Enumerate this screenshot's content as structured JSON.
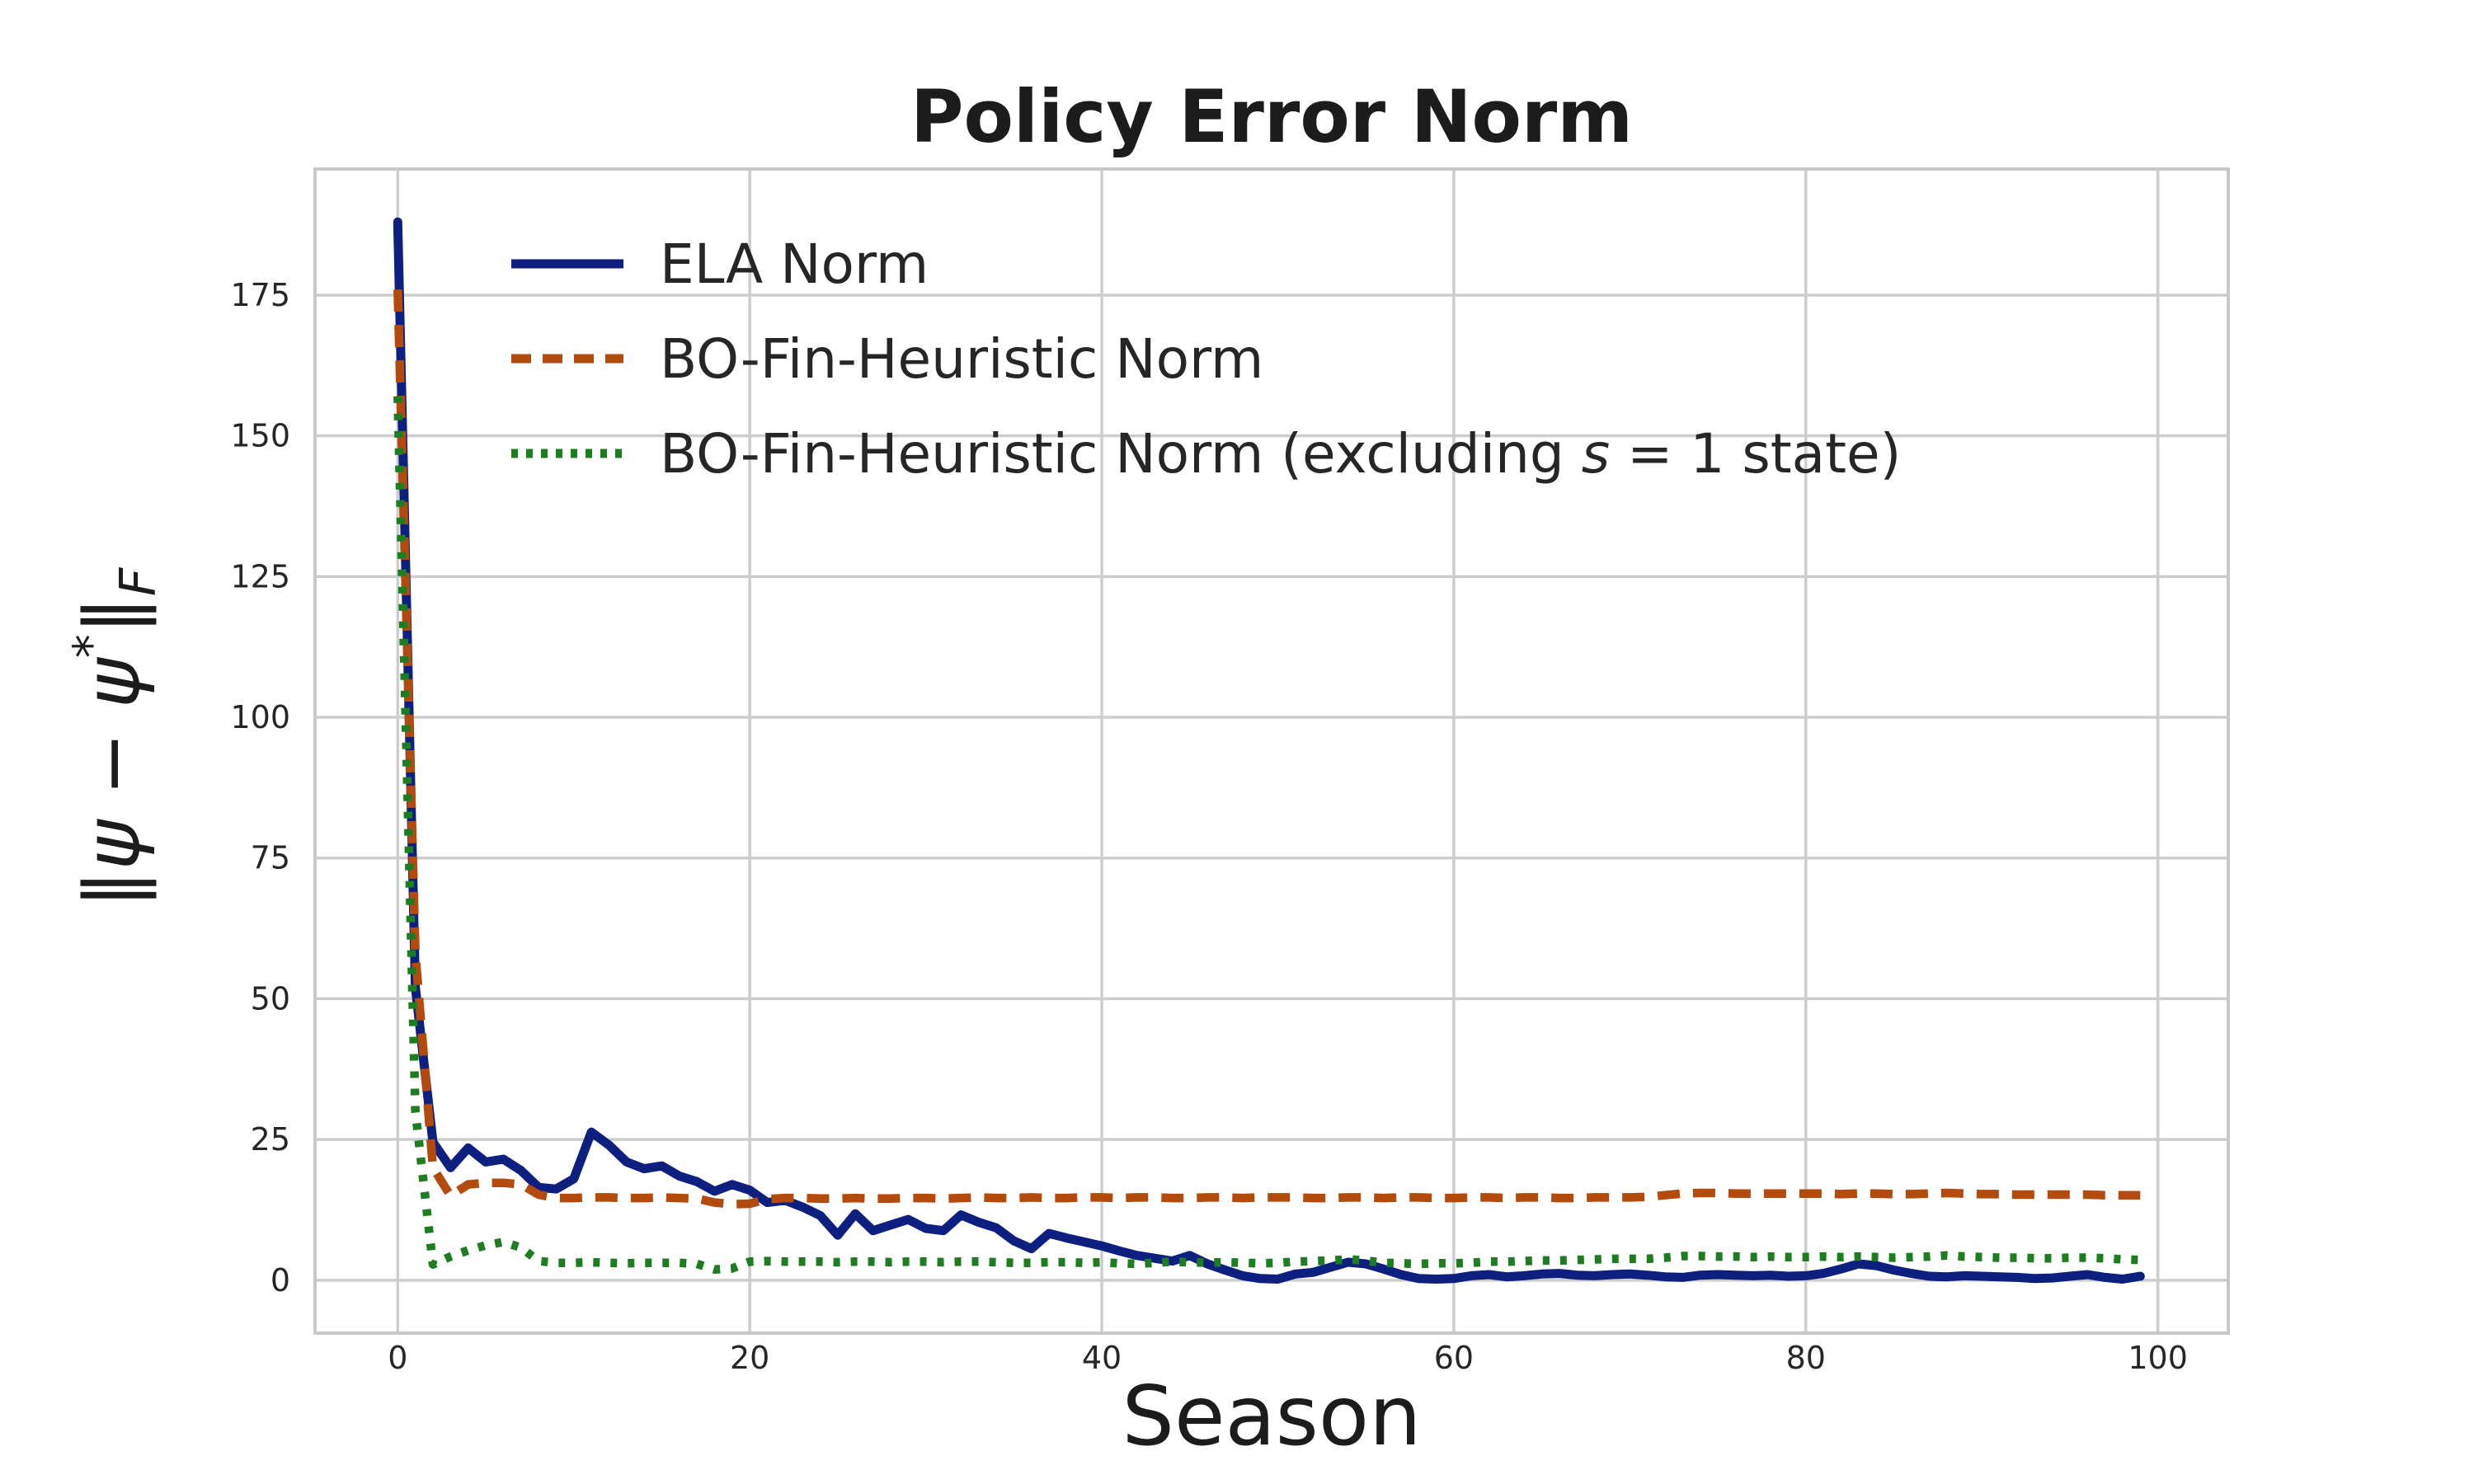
{
  "figure": {
    "background": "#ffffff"
  },
  "chart_data": {
    "type": "line",
    "title": "Policy Error Norm",
    "xlabel": "Season",
    "ylabel": "‖ψ − ψ*‖F",
    "ylabel_parts": [
      {
        "t": "‖",
        "style": "normal"
      },
      {
        "t": "ψ",
        "style": "italic"
      },
      {
        "t": " − ",
        "style": "normal"
      },
      {
        "t": "ψ",
        "style": "italic"
      },
      {
        "t": "*",
        "style": "sup"
      },
      {
        "t": "‖",
        "style": "normal"
      },
      {
        "t": "F",
        "style": "sub-italic"
      }
    ],
    "x_start": 0,
    "x_step": 1,
    "xticks": [
      0,
      20,
      40,
      60,
      80,
      100
    ],
    "yticks": [
      0,
      25,
      50,
      75,
      100,
      125,
      150,
      175
    ],
    "xlim": [
      -4.7,
      104.0
    ],
    "ylim": [
      -9.4,
      197.4
    ],
    "grid": true,
    "legend_position": "upper-left",
    "series": [
      {
        "name": "ELA Norm",
        "name_parts": [
          {
            "t": "ELA Norm",
            "italic": false
          }
        ],
        "color": "#0d2080",
        "style": "solid",
        "values": [
          188,
          52,
          24.5,
          20,
          23.5,
          21,
          21.5,
          19.5,
          16.5,
          16.2,
          18,
          26.3,
          24,
          21,
          19.8,
          20.3,
          18.5,
          17.5,
          15.8,
          17,
          16,
          13.8,
          14.2,
          13,
          11.5,
          8,
          11.8,
          8.8,
          9.8,
          10.8,
          9.2,
          8.8,
          11.6,
          10.3,
          9.3,
          7,
          5.6,
          8.3,
          7.5,
          6.8,
          6.1,
          5.2,
          4.4,
          3.9,
          3.4,
          4.4,
          2.9,
          1.8,
          0.8,
          0.3,
          0.2,
          1.1,
          1.4,
          2.3,
          3.2,
          2.9,
          2.0,
          1.0,
          0.3,
          0.2,
          0.3,
          0.8,
          1.0,
          0.6,
          0.8,
          1.1,
          1.2,
          0.9,
          0.8,
          1.0,
          1.1,
          0.9,
          0.6,
          0.5,
          0.9,
          1.0,
          0.9,
          0.8,
          0.9,
          0.7,
          0.8,
          1.2,
          2.0,
          2.9,
          2.6,
          1.8,
          1.2,
          0.7,
          0.6,
          0.8,
          0.7,
          0.6,
          0.5,
          0.3,
          0.4,
          0.7,
          1.0,
          0.5,
          0.2,
          0.7
        ]
      },
      {
        "name": "BO-Fin-Heuristic Norm",
        "name_parts": [
          {
            "t": "BO-Fin-Heuristic Norm",
            "italic": false
          }
        ],
        "color": "#b44b0e",
        "style": "dashed",
        "values": [
          176,
          58,
          20,
          15,
          17,
          17.3,
          17.3,
          17,
          15.2,
          14.6,
          14.6,
          14.7,
          14.7,
          14.6,
          14.6,
          14.7,
          14.6,
          14.5,
          13.8,
          13.5,
          13.6,
          14.4,
          14.6,
          14.6,
          14.5,
          14.5,
          14.6,
          14.5,
          14.5,
          14.6,
          14.6,
          14.5,
          14.6,
          14.7,
          14.6,
          14.6,
          14.7,
          14.6,
          14.6,
          14.7,
          14.7,
          14.6,
          14.7,
          14.7,
          14.6,
          14.6,
          14.7,
          14.7,
          14.6,
          14.7,
          14.7,
          14.7,
          14.6,
          14.6,
          14.7,
          14.7,
          14.6,
          14.7,
          14.7,
          14.6,
          14.6,
          14.7,
          14.7,
          14.6,
          14.7,
          14.7,
          14.6,
          14.6,
          14.7,
          14.7,
          14.7,
          14.8,
          15.1,
          15.4,
          15.5,
          15.5,
          15.4,
          15.4,
          15.4,
          15.4,
          15.4,
          15.4,
          15.3,
          15.4,
          15.4,
          15.3,
          15.3,
          15.4,
          15.5,
          15.4,
          15.3,
          15.3,
          15.2,
          15.2,
          15.2,
          15.2,
          15.2,
          15.1,
          15.1,
          15.1
        ]
      },
      {
        "name": "BO-Fin-Heuristic Norm (excluding s = 1 state)",
        "name_parts": [
          {
            "t": "BO-Fin-Heuristic Norm (excluding ",
            "italic": false
          },
          {
            "t": "s",
            "italic": true
          },
          {
            "t": " = 1 state)",
            "italic": false
          }
        ],
        "color": "#1e7d21",
        "style": "dotted",
        "values": [
          157,
          30,
          2.8,
          4.2,
          5.3,
          6.2,
          6.8,
          5.8,
          3.4,
          3.1,
          3.1,
          3.2,
          3.1,
          3.0,
          3.1,
          3.1,
          3.1,
          2.9,
          1.9,
          2.1,
          3.3,
          3.4,
          3.3,
          3.3,
          3.3,
          3.2,
          3.3,
          3.3,
          3.2,
          3.3,
          3.3,
          3.2,
          3.3,
          3.3,
          3.2,
          3.1,
          3.1,
          3.2,
          3.2,
          3.1,
          3.2,
          3.0,
          2.9,
          3.1,
          3.3,
          3.2,
          3.1,
          3.2,
          3.1,
          3.0,
          3.1,
          3.3,
          3.4,
          3.5,
          3.7,
          3.5,
          3.1,
          3.0,
          2.9,
          3.0,
          3.0,
          3.1,
          3.3,
          3.3,
          3.4,
          3.5,
          3.5,
          3.6,
          3.7,
          3.8,
          3.8,
          3.8,
          4.0,
          4.3,
          4.3,
          4.2,
          4.2,
          4.1,
          4.2,
          4.1,
          4.1,
          4.2,
          4.1,
          4.2,
          4.1,
          4.0,
          4.1,
          4.2,
          4.4,
          4.2,
          4.1,
          4.0,
          4.0,
          3.9,
          3.9,
          4.0,
          4.0,
          3.9,
          3.7,
          3.6
        ]
      }
    ]
  },
  "colors": {
    "grid": "#cdcdcd",
    "spine": "#c8c8c8",
    "tick_text": "#262626",
    "label_text": "#1c1c1c",
    "legend_text": "#262626",
    "background": "#ffffff"
  }
}
